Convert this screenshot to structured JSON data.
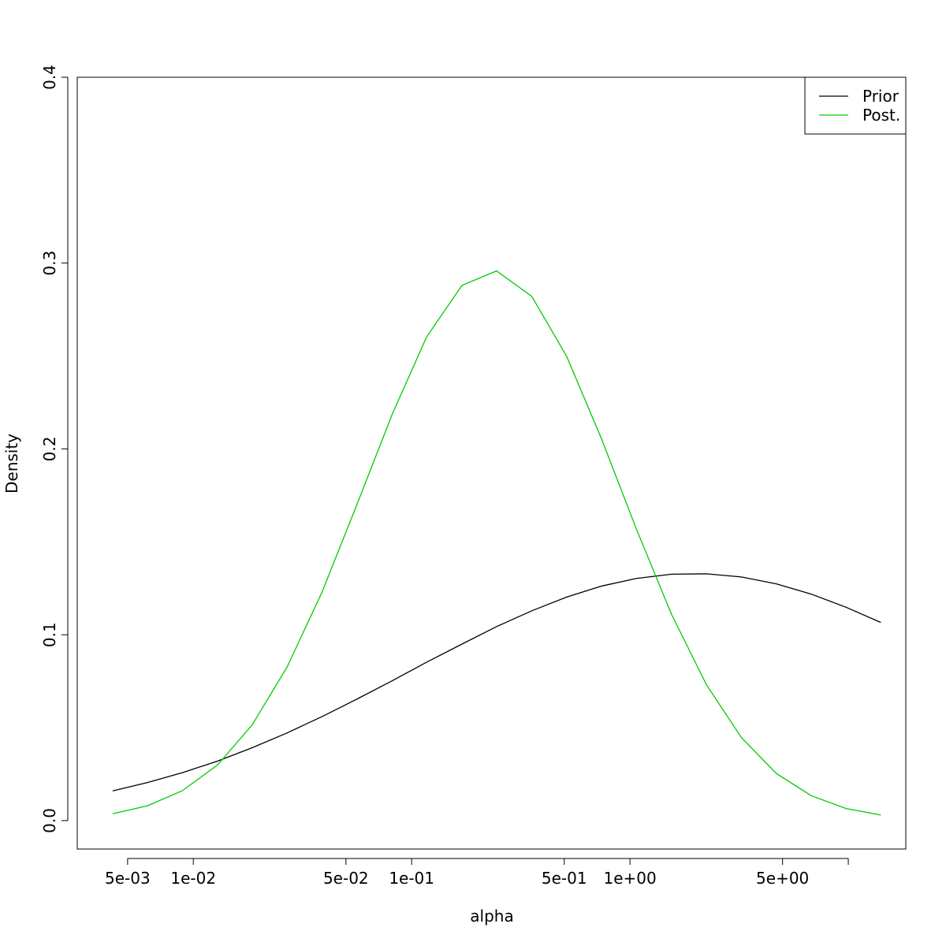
{
  "chart_data": {
    "type": "line",
    "x_label": "alpha",
    "y_label": "Density",
    "x": [
      0.00427,
      0.00617,
      0.00891,
      0.0129,
      0.0186,
      0.0269,
      0.0389,
      0.0562,
      0.0813,
      0.117,
      0.17,
      0.245,
      0.355,
      0.513,
      0.741,
      1.07,
      1.55,
      2.24,
      3.24,
      4.68,
      6.76,
      9.77,
      14.1
    ],
    "series": [
      {
        "name": "Prior",
        "color": "#000000",
        "values": [
          0.016,
          0.0205,
          0.0258,
          0.032,
          0.0392,
          0.0472,
          0.056,
          0.0654,
          0.0752,
          0.0852,
          0.095,
          0.1044,
          0.1129,
          0.1203,
          0.1262,
          0.1303,
          0.1326,
          0.1328,
          0.1311,
          0.1274,
          0.1219,
          0.1148,
          0.1066
        ]
      },
      {
        "name": "Post.",
        "color": "#00cd00",
        "values": [
          0.0037,
          0.008,
          0.0161,
          0.0299,
          0.0515,
          0.0827,
          0.1231,
          0.1702,
          0.2184,
          0.2602,
          0.288,
          0.2958,
          0.2821,
          0.2498,
          0.2054,
          0.1569,
          0.111,
          0.0731,
          0.0447,
          0.0254,
          0.0134,
          0.0065,
          0.003
        ]
      }
    ],
    "x_log": true,
    "xlim": [
      0.00294,
      18.34
    ],
    "xticks": [
      {
        "value": 0.005,
        "label": "5e-03"
      },
      {
        "value": 0.01,
        "label": "1e-02"
      },
      {
        "value": 0.05,
        "label": "5e-02"
      },
      {
        "value": 0.1,
        "label": "1e-01"
      },
      {
        "value": 0.5,
        "label": "5e-01"
      },
      {
        "value": 1,
        "label": "1e+00"
      },
      {
        "value": 5,
        "label": "5e+00"
      },
      {
        "value": 10,
        "label": null
      }
    ],
    "ylim": [
      -0.0153,
      0.4
    ],
    "yticks": [
      {
        "value": 0,
        "label": "0.0"
      },
      0.1,
      0.2,
      0.3,
      0.4
    ],
    "legend": "topright"
  }
}
